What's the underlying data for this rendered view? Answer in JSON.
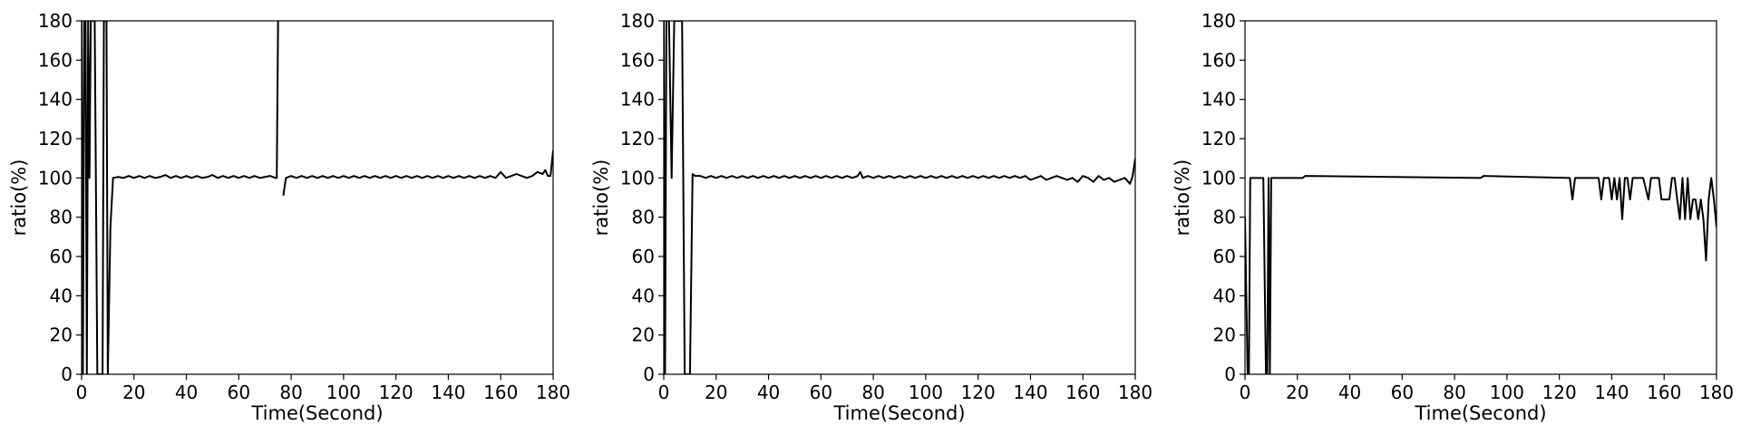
{
  "figure": {
    "line_color": "#000000",
    "background": "#ffffff"
  },
  "chart_data": [
    {
      "type": "line",
      "title": "",
      "xlabel": "Time(Second)",
      "ylabel": "ratio(%)",
      "xlim": [
        0,
        180
      ],
      "ylim": [
        0,
        180
      ],
      "xticks": [
        "0",
        "20",
        "40",
        "60",
        "80",
        "100",
        "120",
        "140",
        "160",
        "180"
      ],
      "yticks": [
        "0",
        "20",
        "40",
        "60",
        "80",
        "100",
        "120",
        "140",
        "160",
        "180"
      ],
      "grid": false,
      "series": [
        {
          "name": "ratio",
          "x": [
            0,
            0.5,
            1,
            1.5,
            2,
            2.5,
            3,
            3.5,
            4,
            5,
            6,
            7,
            8,
            8.5,
            9,
            9.5,
            10,
            11,
            12,
            14,
            16,
            18,
            20,
            22,
            24,
            26,
            28,
            30,
            32,
            34,
            36,
            38,
            40,
            42,
            44,
            46,
            48,
            50,
            52,
            54,
            56,
            58,
            60,
            62,
            64,
            66,
            68,
            70,
            72,
            74,
            74.5,
            75,
            76,
            77,
            78,
            80,
            82,
            84,
            86,
            88,
            90,
            92,
            94,
            96,
            98,
            100,
            102,
            104,
            106,
            108,
            110,
            112,
            114,
            116,
            118,
            120,
            122,
            124,
            126,
            128,
            130,
            132,
            134,
            136,
            138,
            140,
            142,
            144,
            146,
            148,
            150,
            152,
            154,
            156,
            158,
            160,
            162,
            164,
            166,
            168,
            170,
            172,
            174,
            176,
            177,
            178,
            179,
            180
          ],
          "y": [
            180,
            0,
            180,
            180,
            0,
            180,
            100,
            180,
            180,
            180,
            0,
            0,
            0,
            180,
            180,
            180,
            0,
            75,
            100,
            100.5,
            100,
            101,
            100,
            101,
            100,
            101,
            100,
            100.5,
            101.5,
            100,
            101,
            100,
            101,
            100,
            101,
            100,
            100.5,
            101.5,
            100,
            101,
            100,
            101,
            100,
            101,
            100,
            101,
            100,
            100.5,
            101,
            100,
            100,
            180,
            null,
            91,
            100,
            101,
            100,
            101,
            100,
            101,
            100,
            101,
            100,
            101,
            100,
            101,
            100,
            101,
            100,
            101,
            100,
            101,
            100,
            101,
            100,
            101,
            100,
            101,
            100,
            101,
            100,
            101,
            100,
            101,
            100,
            101,
            100,
            101,
            100,
            101,
            100,
            101,
            100,
            101,
            100,
            103,
            100,
            101,
            102,
            101,
            100,
            101,
            103,
            102,
            104,
            101,
            101,
            114
          ]
        }
      ]
    },
    {
      "type": "line",
      "title": "",
      "xlabel": "Time(Second)",
      "ylabel": "ratio(%)",
      "xlim": [
        0,
        180
      ],
      "ylim": [
        0,
        180
      ],
      "xticks": [
        "0",
        "20",
        "40",
        "60",
        "80",
        "100",
        "120",
        "140",
        "160",
        "180"
      ],
      "yticks": [
        "0",
        "20",
        "40",
        "60",
        "80",
        "100",
        "120",
        "140",
        "160",
        "180"
      ],
      "grid": false,
      "series": [
        {
          "name": "ratio",
          "x": [
            0,
            0.5,
            1,
            1.5,
            2,
            3,
            4,
            5,
            6,
            7,
            8,
            8.5,
            9,
            10,
            11,
            12,
            14,
            16,
            18,
            20,
            22,
            24,
            26,
            28,
            30,
            32,
            34,
            36,
            38,
            40,
            42,
            44,
            46,
            48,
            50,
            52,
            54,
            56,
            58,
            60,
            62,
            64,
            66,
            68,
            70,
            72,
            74,
            75,
            76,
            78,
            80,
            82,
            84,
            86,
            88,
            90,
            92,
            94,
            96,
            98,
            100,
            102,
            104,
            106,
            108,
            110,
            112,
            114,
            116,
            118,
            120,
            122,
            124,
            126,
            128,
            130,
            132,
            134,
            136,
            138,
            140,
            142,
            144,
            146,
            148,
            150,
            152,
            154,
            156,
            158,
            160,
            162,
            164,
            166,
            168,
            170,
            172,
            174,
            176,
            178,
            179,
            180
          ],
          "y": [
            180,
            0,
            180,
            180,
            180,
            100,
            180,
            180,
            180,
            180,
            0,
            0,
            0,
            0,
            102,
            101,
            101,
            100,
            101,
            100,
            101,
            100,
            101,
            100,
            101,
            100,
            101,
            100,
            101,
            100,
            101,
            100,
            101,
            100,
            101,
            100,
            101,
            100,
            101,
            100,
            101,
            100,
            101,
            100,
            101,
            100,
            101,
            103,
            100,
            101,
            100,
            101,
            100,
            101,
            100,
            101,
            100,
            101,
            100,
            101,
            100,
            101,
            100,
            101,
            100,
            101,
            100,
            101,
            100,
            101,
            100,
            101,
            100,
            101,
            100,
            101,
            100,
            101,
            100,
            101,
            99,
            100,
            101,
            99,
            100,
            101,
            100,
            99,
            100,
            98,
            101,
            100,
            98,
            101,
            99,
            100,
            98,
            99,
            100,
            97,
            101,
            110
          ]
        }
      ]
    },
    {
      "type": "line",
      "title": "",
      "xlabel": "Time(Second)",
      "ylabel": "ratio(%)",
      "xlim": [
        0,
        180
      ],
      "ylim": [
        0,
        180
      ],
      "xticks": [
        "0",
        "20",
        "40",
        "60",
        "80",
        "100",
        "120",
        "140",
        "160",
        "180"
      ],
      "yticks": [
        "0",
        "20",
        "40",
        "60",
        "80",
        "100",
        "120",
        "140",
        "160",
        "180"
      ],
      "grid": false,
      "series": [
        {
          "name": "ratio",
          "x": [
            0,
            1,
            1.5,
            2,
            2.5,
            6.5,
            7,
            8,
            8.5,
            9,
            9.5,
            10,
            22,
            23,
            90,
            91,
            124,
            125,
            126,
            135,
            136,
            137,
            138,
            139,
            140,
            141,
            142,
            143,
            144,
            145,
            146,
            147,
            148,
            149,
            150,
            152,
            154,
            155,
            156,
            157,
            158,
            159,
            160,
            161,
            162,
            163,
            164,
            165,
            166,
            167,
            168,
            169,
            170,
            171,
            172,
            173,
            174,
            175,
            176,
            177,
            178,
            179,
            180
          ],
          "y": [
            80,
            0,
            0,
            100,
            100,
            100,
            100,
            0,
            0,
            100,
            0,
            100,
            100,
            101,
            100,
            101,
            100,
            89,
            100,
            100,
            89,
            100,
            100,
            100,
            89,
            100,
            89,
            100,
            79,
            100,
            100,
            89,
            100,
            100,
            100,
            100,
            89,
            100,
            100,
            100,
            100,
            89,
            89,
            89,
            89,
            100,
            100,
            89,
            79,
            100,
            79,
            100,
            79,
            89,
            89,
            79,
            89,
            79,
            58,
            89,
            100,
            89,
            75
          ]
        }
      ]
    }
  ]
}
